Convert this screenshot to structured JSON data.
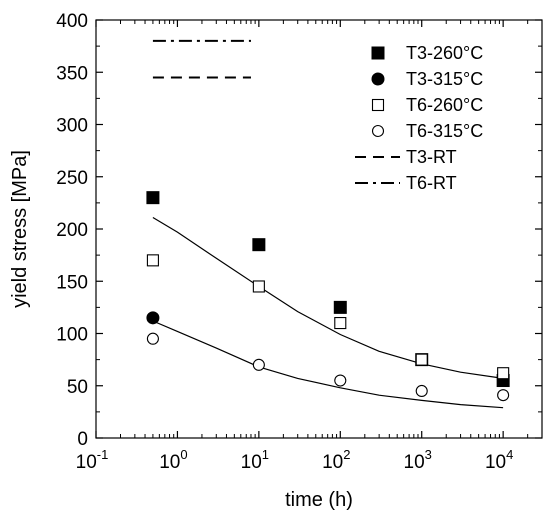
{
  "chart_data": {
    "type": "scatter",
    "xlabel": "time (h)",
    "ylabel": "yield stress [MPa]",
    "xscale": "log",
    "xlim": [
      0.1,
      30000
    ],
    "ylim": [
      0,
      400
    ],
    "grid": false,
    "legend_position": "top-right",
    "x_ticks": [
      {
        "value": 0.1,
        "base": "10",
        "exp": "-1"
      },
      {
        "value": 1,
        "base": "10",
        "exp": "0"
      },
      {
        "value": 10,
        "base": "10",
        "exp": "1"
      },
      {
        "value": 100,
        "base": "10",
        "exp": "2"
      },
      {
        "value": 1000,
        "base": "10",
        "exp": "3"
      },
      {
        "value": 10000,
        "base": "10",
        "exp": "4"
      }
    ],
    "y_ticks": [
      {
        "value": 0,
        "label": "0"
      },
      {
        "value": 50,
        "label": "50"
      },
      {
        "value": 100,
        "label": "100"
      },
      {
        "value": 150,
        "label": "150"
      },
      {
        "value": 200,
        "label": "200"
      },
      {
        "value": 250,
        "label": "250"
      },
      {
        "value": 300,
        "label": "300"
      },
      {
        "value": 350,
        "label": "350"
      },
      {
        "value": 400,
        "label": "400"
      }
    ],
    "series": [
      {
        "name": "T3-260°C",
        "marker": "filled-square",
        "x": [
          0.5,
          10,
          100,
          1000,
          10000
        ],
        "y": [
          230,
          185,
          125,
          75,
          55
        ]
      },
      {
        "name": "T3-315°C",
        "marker": "filled-circle",
        "x": [
          0.5
        ],
        "y": [
          115
        ]
      },
      {
        "name": "T6-260°C",
        "marker": "open-square",
        "x": [
          0.5,
          10,
          100,
          1000,
          10000
        ],
        "y": [
          170,
          145,
          110,
          75,
          62
        ]
      },
      {
        "name": "T6-315°C",
        "marker": "open-circle",
        "x": [
          0.5,
          10,
          100,
          1000,
          10000
        ],
        "y": [
          95,
          70,
          55,
          45,
          41
        ]
      },
      {
        "name": "T3-RT",
        "marker": "dashed-line",
        "x": [
          0.5,
          8
        ],
        "y": [
          345,
          345
        ]
      },
      {
        "name": "T6-RT",
        "marker": "dashdot-line",
        "x": [
          0.5,
          8
        ],
        "y": [
          380,
          380
        ]
      }
    ],
    "fit_lines": [
      {
        "x": [
          0.5,
          1,
          3,
          10,
          30,
          100,
          300,
          1000,
          3000,
          10000
        ],
        "y": [
          211,
          197,
          172,
          145,
          121,
          99,
          83,
          71,
          63,
          57
        ]
      },
      {
        "x": [
          0.5,
          1,
          3,
          10,
          30,
          100,
          300,
          1000,
          3000,
          10000
        ],
        "y": [
          112,
          102,
          86,
          68,
          57,
          48,
          41,
          36,
          32,
          29
        ]
      }
    ]
  }
}
